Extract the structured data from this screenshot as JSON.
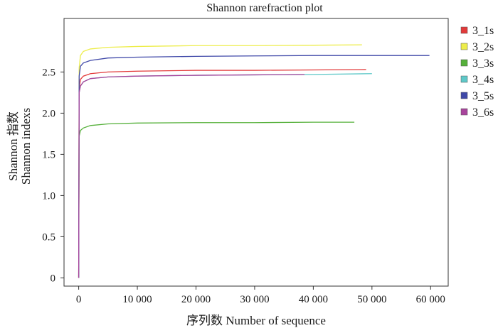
{
  "chart_data": {
    "type": "line",
    "title": "Shannon rarefraction plot",
    "xlabel": "序列数 Number of sequence",
    "ylabel_line1": "Shannon 指数",
    "ylabel_line2": "Shannon indexs",
    "xlim": [
      -2500,
      63000
    ],
    "ylim": [
      -0.1,
      3.15
    ],
    "x_ticks": [
      {
        "value": 0,
        "label": "0"
      },
      {
        "value": 10000,
        "label": "10 000"
      },
      {
        "value": 20000,
        "label": "20 000"
      },
      {
        "value": 30000,
        "label": "30 000"
      },
      {
        "value": 40000,
        "label": "40 000"
      },
      {
        "value": 50000,
        "label": "50 000"
      },
      {
        "value": 60000,
        "label": "60 000"
      }
    ],
    "y_ticks": [
      {
        "value": 0,
        "label": "0"
      },
      {
        "value": 0.5,
        "label": "0.5"
      },
      {
        "value": 1.0,
        "label": "1.0"
      },
      {
        "value": 1.5,
        "label": "1.5"
      },
      {
        "value": 2.0,
        "label": "2.0"
      },
      {
        "value": 2.5,
        "label": "2.5"
      }
    ],
    "series": [
      {
        "name": "3_1s",
        "color": "#e23a3a",
        "points": [
          [
            0,
            0
          ],
          [
            80,
            2.3
          ],
          [
            300,
            2.41
          ],
          [
            800,
            2.45
          ],
          [
            2000,
            2.48
          ],
          [
            5000,
            2.5
          ],
          [
            10000,
            2.51
          ],
          [
            20000,
            2.52
          ],
          [
            30000,
            2.52
          ],
          [
            40000,
            2.525
          ],
          [
            49000,
            2.53
          ]
        ]
      },
      {
        "name": "3_2s",
        "color": "#eded4a",
        "points": [
          [
            0,
            0
          ],
          [
            80,
            2.55
          ],
          [
            300,
            2.7
          ],
          [
            800,
            2.75
          ],
          [
            2000,
            2.78
          ],
          [
            5000,
            2.8
          ],
          [
            10000,
            2.81
          ],
          [
            20000,
            2.82
          ],
          [
            30000,
            2.82
          ],
          [
            40000,
            2.825
          ],
          [
            48300,
            2.83
          ]
        ]
      },
      {
        "name": "3_3s",
        "color": "#55b03a",
        "points": [
          [
            0,
            0
          ],
          [
            80,
            1.72
          ],
          [
            300,
            1.79
          ],
          [
            800,
            1.82
          ],
          [
            2000,
            1.85
          ],
          [
            5000,
            1.87
          ],
          [
            10000,
            1.88
          ],
          [
            20000,
            1.885
          ],
          [
            30000,
            1.885
          ],
          [
            40000,
            1.89
          ],
          [
            47000,
            1.89
          ]
        ]
      },
      {
        "name": "3_4s",
        "color": "#5ec8c8",
        "points": [
          [
            0,
            0
          ],
          [
            80,
            2.25
          ],
          [
            300,
            2.33
          ],
          [
            800,
            2.38
          ],
          [
            2000,
            2.42
          ],
          [
            5000,
            2.44
          ],
          [
            10000,
            2.45
          ],
          [
            20000,
            2.46
          ],
          [
            30000,
            2.465
          ],
          [
            40000,
            2.47
          ],
          [
            50000,
            2.48
          ]
        ]
      },
      {
        "name": "3_5s",
        "color": "#3f48a8",
        "points": [
          [
            0,
            0
          ],
          [
            80,
            2.45
          ],
          [
            300,
            2.57
          ],
          [
            800,
            2.61
          ],
          [
            2000,
            2.64
          ],
          [
            5000,
            2.67
          ],
          [
            10000,
            2.68
          ],
          [
            20000,
            2.69
          ],
          [
            30000,
            2.695
          ],
          [
            40000,
            2.7
          ],
          [
            50000,
            2.7
          ],
          [
            59800,
            2.7
          ]
        ]
      },
      {
        "name": "3_6s",
        "color": "#a8449c",
        "points": [
          [
            0,
            0
          ],
          [
            80,
            2.25
          ],
          [
            300,
            2.33
          ],
          [
            800,
            2.38
          ],
          [
            2000,
            2.42
          ],
          [
            5000,
            2.44
          ],
          [
            10000,
            2.45
          ],
          [
            20000,
            2.46
          ],
          [
            30000,
            2.465
          ],
          [
            38500,
            2.47
          ]
        ]
      }
    ],
    "legend_position": "right"
  }
}
